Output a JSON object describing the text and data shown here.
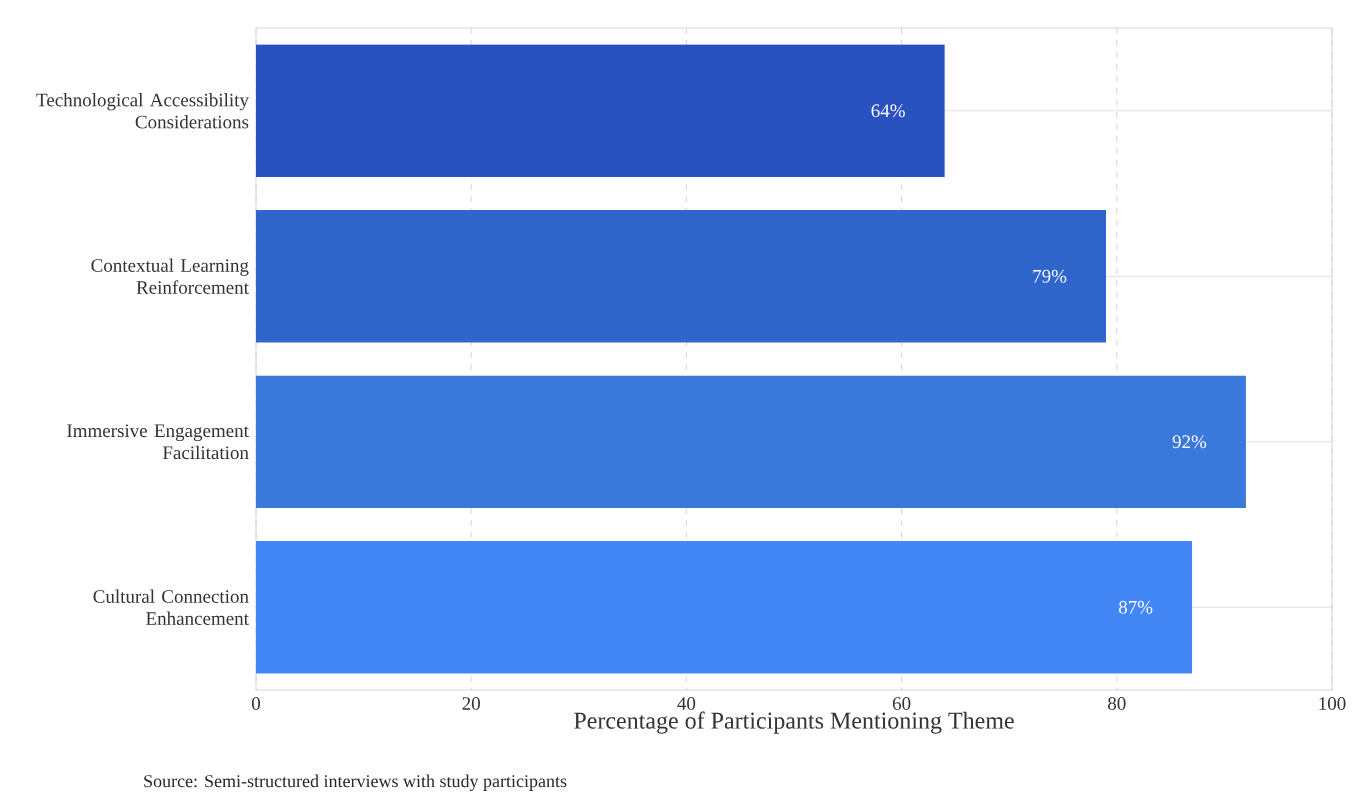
{
  "chart_data": {
    "type": "bar",
    "orientation": "horizontal",
    "categories": [
      "Technological Accessibility Considerations",
      "Contextual Learning Reinforcement",
      "Immersive Engagement Facilitation",
      "Cultural Connection Enhancement"
    ],
    "values": [
      64,
      79,
      92,
      87
    ],
    "value_labels": [
      "64%",
      "79%",
      "92%",
      "87%"
    ],
    "colors": [
      "#2a52be",
      "#3066cc",
      "#3a78dc",
      "#4287f5"
    ],
    "xlabel": "Percentage of Participants Mentioning Theme",
    "xlim": [
      0,
      100
    ],
    "xticks": [
      0,
      20,
      40,
      60,
      80,
      100
    ],
    "grid": true,
    "annotations": [
      "Source: Semi-structured interviews with study participants"
    ]
  }
}
